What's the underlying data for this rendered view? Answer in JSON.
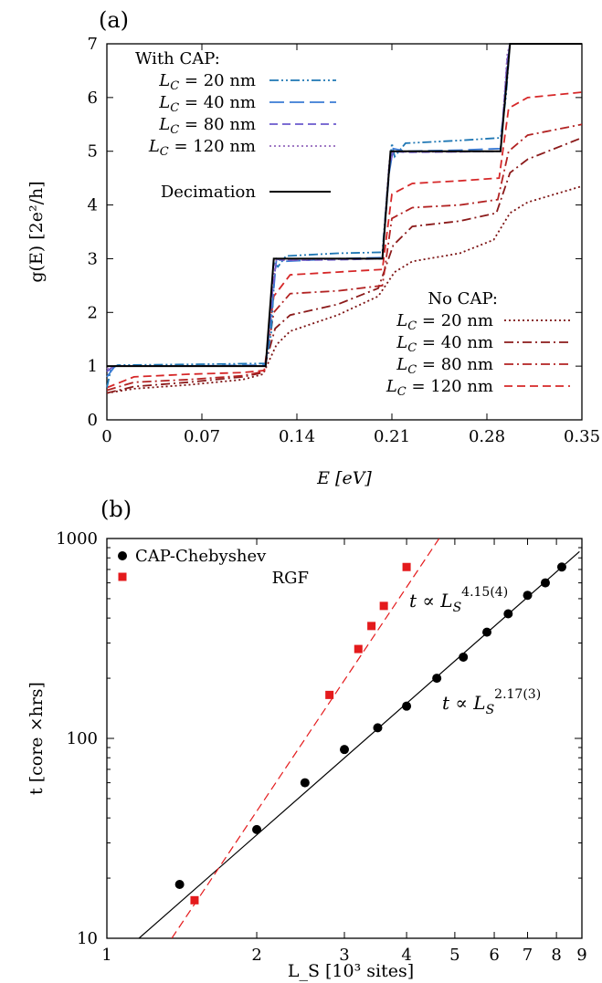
{
  "chart_data": [
    {
      "panel_label": "(a)",
      "type": "line",
      "xlabel": "E [eV]",
      "ylabel": "g(E) [2e²/h]",
      "xlim": [
        0,
        0.35
      ],
      "ylim": [
        0,
        7
      ],
      "xticks": [
        "0",
        "0.07",
        "0.14",
        "0.21",
        "0.28",
        "0.35"
      ],
      "yticks": [
        "0",
        "1",
        "2",
        "3",
        "4",
        "5",
        "6",
        "7"
      ],
      "legend_groups": [
        {
          "title": "With CAP:",
          "position": "top-left"
        },
        {
          "title": "No CAP:",
          "position": "bottom-right"
        }
      ],
      "series": [
        {
          "name": "Decimation",
          "group": "",
          "color": "#000000",
          "dash": "solid",
          "x": [
            0,
            0.117,
            0.123,
            0.203,
            0.209,
            0.29,
            0.297,
            0.35
          ],
          "y": [
            1,
            1,
            3,
            3,
            5,
            5,
            7,
            7
          ]
        },
        {
          "name": "L_C = 20 nm",
          "group": "With CAP:",
          "color": "#1f77b4",
          "dash": "dashdotdot",
          "x": [
            0,
            0.003,
            0.008,
            0.05,
            0.117,
            0.121,
            0.124,
            0.126,
            0.132,
            0.17,
            0.203,
            0.207,
            0.21,
            0.212,
            0.22,
            0.26,
            0.29,
            0.294,
            0.297,
            0.35
          ],
          "y": [
            0.6,
            0.95,
            1.02,
            1.03,
            1.05,
            1.6,
            2.9,
            2.85,
            3.05,
            3.1,
            3.12,
            4.4,
            5.15,
            4.9,
            5.15,
            5.2,
            5.25,
            6.0,
            7.0,
            7.0
          ]
        },
        {
          "name": "L_C = 40 nm",
          "group": "With CAP:",
          "color": "#3a7bd5",
          "dash": "longdash",
          "x": [
            0,
            0.006,
            0.05,
            0.117,
            0.122,
            0.125,
            0.13,
            0.17,
            0.203,
            0.208,
            0.211,
            0.22,
            0.26,
            0.29,
            0.295,
            0.297,
            0.35
          ],
          "y": [
            0.8,
            1.0,
            1.0,
            1.02,
            2.2,
            3.0,
            2.95,
            3.0,
            3.02,
            4.6,
            5.05,
            5.0,
            5.02,
            5.05,
            6.6,
            7.0,
            7.0
          ]
        },
        {
          "name": "L_C = 80 nm",
          "group": "With CAP:",
          "color": "#6a5acd",
          "dash": "dashed",
          "x": [
            0,
            0.005,
            0.05,
            0.117,
            0.122,
            0.125,
            0.13,
            0.17,
            0.203,
            0.208,
            0.211,
            0.22,
            0.26,
            0.29,
            0.295,
            0.297,
            0.35
          ],
          "y": [
            0.9,
            1.0,
            1.0,
            1.0,
            2.4,
            3.0,
            2.97,
            2.98,
            3.0,
            4.7,
            5.0,
            4.98,
            4.99,
            5.0,
            6.7,
            7.0,
            7.0
          ]
        },
        {
          "name": "L_C = 120 nm",
          "group": "With CAP:",
          "color": "#9467bd",
          "dash": "dotted",
          "x": [
            0,
            0.005,
            0.05,
            0.117,
            0.122,
            0.125,
            0.13,
            0.17,
            0.203,
            0.208,
            0.211,
            0.22,
            0.26,
            0.29,
            0.295,
            0.297,
            0.35
          ],
          "y": [
            0.95,
            1.0,
            1.0,
            1.0,
            2.5,
            3.0,
            2.98,
            2.99,
            3.0,
            4.8,
            5.0,
            4.99,
            4.99,
            5.0,
            6.8,
            7.0,
            7.0
          ]
        },
        {
          "name": "L_C = 20 nm",
          "group": "No CAP:",
          "color": "#7b1010",
          "dash": "dotted",
          "x": [
            0,
            0.02,
            0.06,
            0.1,
            0.115,
            0.125,
            0.135,
            0.17,
            0.2,
            0.212,
            0.225,
            0.26,
            0.285,
            0.297,
            0.31,
            0.35
          ],
          "y": [
            0.5,
            0.58,
            0.65,
            0.75,
            0.85,
            1.4,
            1.65,
            1.95,
            2.3,
            2.75,
            2.95,
            3.1,
            3.35,
            3.85,
            4.05,
            4.35
          ]
        },
        {
          "name": "L_C = 40 nm",
          "group": "No CAP:",
          "color": "#8b1a1a",
          "dash": "dashdot",
          "x": [
            0,
            0.02,
            0.06,
            0.1,
            0.115,
            0.124,
            0.135,
            0.17,
            0.2,
            0.211,
            0.225,
            0.26,
            0.287,
            0.297,
            0.31,
            0.35
          ],
          "y": [
            0.5,
            0.62,
            0.7,
            0.8,
            0.88,
            1.7,
            1.95,
            2.15,
            2.45,
            3.25,
            3.6,
            3.7,
            3.85,
            4.6,
            4.85,
            5.25
          ]
        },
        {
          "name": "L_C = 80 nm",
          "group": "No CAP:",
          "color": "#b22222",
          "dash": "dashdot",
          "x": [
            0,
            0.02,
            0.06,
            0.1,
            0.116,
            0.123,
            0.135,
            0.17,
            0.203,
            0.21,
            0.225,
            0.26,
            0.288,
            0.296,
            0.31,
            0.35
          ],
          "y": [
            0.55,
            0.7,
            0.75,
            0.82,
            0.9,
            2.0,
            2.35,
            2.4,
            2.5,
            3.75,
            3.95,
            4.0,
            4.1,
            5.0,
            5.3,
            5.5
          ]
        },
        {
          "name": "L_C = 120 nm",
          "group": "No CAP:",
          "color": "#d62728",
          "dash": "dashed",
          "x": [
            0,
            0.02,
            0.06,
            0.1,
            0.116,
            0.123,
            0.135,
            0.17,
            0.203,
            0.21,
            0.225,
            0.26,
            0.289,
            0.296,
            0.31,
            0.35
          ],
          "y": [
            0.6,
            0.8,
            0.85,
            0.88,
            0.92,
            2.3,
            2.7,
            2.75,
            2.8,
            4.2,
            4.4,
            4.45,
            4.5,
            5.8,
            6.0,
            6.1
          ]
        }
      ]
    },
    {
      "panel_label": "(b)",
      "type": "scatter",
      "xscale": "log",
      "yscale": "log",
      "xlabel": "L_S [10³ sites]",
      "ylabel": "t [core ×hrs]",
      "xlim": [
        1,
        9
      ],
      "ylim": [
        10,
        1000
      ],
      "xticks": [
        "1",
        "2",
        "3",
        "4",
        "5",
        "6",
        "7",
        "8",
        "9"
      ],
      "yticks": [
        "10",
        "100",
        "1000"
      ],
      "legend_position": "top-left",
      "series": [
        {
          "name": "CAP-Chebyshev",
          "marker": "circle",
          "color": "#000000",
          "x": [
            1.4,
            2.0,
            2.5,
            3.0,
            3.5,
            4.0,
            4.6,
            5.2,
            5.8,
            6.4,
            7.0,
            7.6,
            8.2
          ],
          "y": [
            18.6,
            35,
            60,
            88,
            113,
            145,
            200,
            255,
            340,
            420,
            520,
            600,
            720
          ],
          "fit": {
            "exponent_label": "2.17(3)",
            "annotation_prefix": "t ∝ L",
            "sub": "S",
            "color": "#000000",
            "dash": "solid",
            "x": [
              1.16,
              8.9
            ],
            "y": [
              10,
              860
            ]
          }
        },
        {
          "name": "RGF",
          "marker": "square",
          "color": "#e41a1c",
          "x": [
            1.5,
            2.8,
            3.2,
            3.4,
            3.6,
            4.0
          ],
          "y": [
            15.5,
            165,
            280,
            365,
            460,
            720
          ],
          "fit": {
            "exponent_label": "4.15(4)",
            "annotation_prefix": "t ∝ L",
            "sub": "S",
            "color": "#e41a1c",
            "dash": "dashed",
            "x": [
              1.35,
              4.65
            ],
            "y": [
              10,
              1000
            ]
          }
        }
      ]
    }
  ]
}
